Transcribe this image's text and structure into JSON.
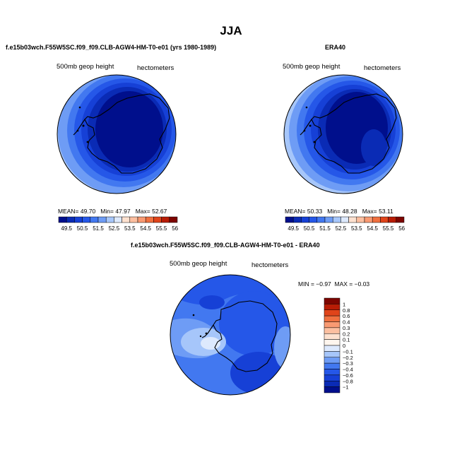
{
  "main_title": "JJA",
  "panels": [
    {
      "title": "f.e15b03wch.F55W5SC.f09_f09.CLB-AGW4-HM-T0-e01 (yrs 1980-1989)",
      "variable": "500mb geop height",
      "units": "hectometers",
      "stats": {
        "mean_label": "MEAN=",
        "mean": "49.70",
        "min_label": "Min=",
        "min": "47.97",
        "max_label": "Max=",
        "max": "52.67"
      }
    },
    {
      "title": "ERA40",
      "variable": "500mb geop height",
      "units": "hectometers",
      "stats": {
        "mean_label": "MEAN=",
        "mean": "50.33",
        "min_label": "Min=",
        "min": "48.28",
        "max_label": "Max=",
        "max": "53.11"
      }
    },
    {
      "title": "f.e15b03wch.F55W5SC.f09_f09.CLB-AGW4-HM-T0-e01 - ERA40",
      "variable": "500mb geop height",
      "units": "hectometers",
      "stats": {
        "min_label": "MIN =",
        "min": "−0.97",
        "max_label": "MAX =",
        "max": "−0.03"
      }
    }
  ],
  "chart_data": [
    {
      "type": "heatmap",
      "title": "f.e15b03wch.F55W5SC.f09_f09.CLB-AGW4-HM-T0-e01 (yrs 1980-1989)",
      "variable": "500mb geop height",
      "units": "hectometers",
      "projection": "polar stereographic, South Pole",
      "mean": 49.7,
      "min": 47.97,
      "max": 52.67,
      "colorbar": {
        "orientation": "horizontal",
        "tick_labels": [
          "49.5",
          "50.5",
          "51.5",
          "52.5",
          "53.5",
          "54.5",
          "55.5",
          "56.5"
        ],
        "colors": [
          "#000f8c",
          "#0a2bb5",
          "#1640d6",
          "#2557e8",
          "#4278f0",
          "#6e9cf5",
          "#a6c6fa",
          "#dde9fd",
          "#fde1cf",
          "#fcbfa0",
          "#f99a72",
          "#f0703f",
          "#e0441a",
          "#b81c05",
          "#7d0500"
        ]
      }
    },
    {
      "type": "heatmap",
      "title": "ERA40",
      "variable": "500mb geop height",
      "units": "hectometers",
      "projection": "polar stereographic, South Pole",
      "mean": 50.33,
      "min": 48.28,
      "max": 53.11,
      "colorbar": {
        "orientation": "horizontal",
        "tick_labels": [
          "49.5",
          "50.5",
          "51.5",
          "52.5",
          "53.5",
          "54.5",
          "55.5",
          "56.5"
        ],
        "colors": [
          "#000f8c",
          "#0a2bb5",
          "#1640d6",
          "#2557e8",
          "#4278f0",
          "#6e9cf5",
          "#a6c6fa",
          "#dde9fd",
          "#fde1cf",
          "#fcbfa0",
          "#f99a72",
          "#f0703f",
          "#e0441a",
          "#b81c05",
          "#7d0500"
        ]
      }
    },
    {
      "type": "heatmap",
      "title": "f.e15b03wch.F55W5SC.f09_f09.CLB-AGW4-HM-T0-e01 - ERA40",
      "variable": "500mb geop height",
      "units": "hectometers",
      "projection": "polar stereographic, South Pole",
      "min": -0.97,
      "max": -0.03,
      "colorbar": {
        "orientation": "vertical",
        "tick_labels": [
          "1",
          "0.8",
          "0.6",
          "0.4",
          "0.3",
          "0.2",
          "0.1",
          "0",
          "−0.1",
          "−0.2",
          "−0.3",
          "−0.4",
          "−0.6",
          "−0.8",
          "−1"
        ],
        "colors": [
          "#7d0500",
          "#b81c05",
          "#e0441a",
          "#f0703f",
          "#f99a72",
          "#fcbfa0",
          "#fde1cf",
          "#fff6ee",
          "#dde9fd",
          "#a6c6fa",
          "#6e9cf5",
          "#4278f0",
          "#2557e8",
          "#1640d6",
          "#0a2bb5",
          "#000f8c"
        ]
      }
    }
  ]
}
